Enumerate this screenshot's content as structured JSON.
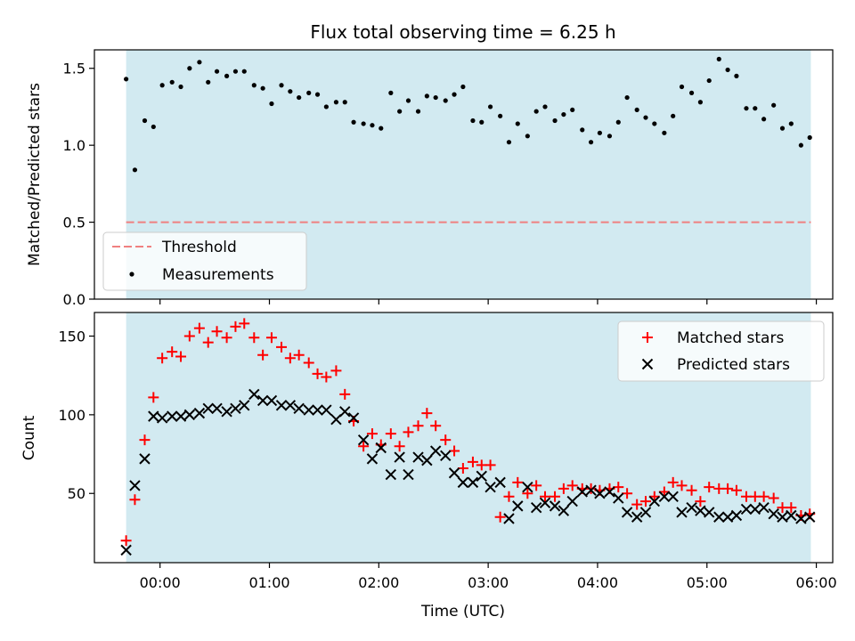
{
  "figure": {
    "title": "Flux total observing time = 6.25 h",
    "xlabel": "Time (UTC)"
  },
  "colors": {
    "shade": "#add8e6",
    "threshold": "#f08080",
    "measurements": "#000000",
    "matched": "#ff0000",
    "predicted": "#000000"
  },
  "chart_data": [
    {
      "type": "scatter",
      "panel": "top",
      "ylabel": "Matched/Predicted stars",
      "xlim": [
        -0.6,
        6.15
      ],
      "ylim": [
        0.0,
        1.62
      ],
      "x_unit": "hours (UTC)",
      "shaded_span": [
        -0.31,
        5.95
      ],
      "x_ticks": [
        0,
        1,
        2,
        3,
        4,
        5,
        6
      ],
      "y_ticks": [
        0.0,
        0.5,
        1.0,
        1.5
      ],
      "y_tick_labels": [
        "0.0",
        "0.5",
        "1.0",
        "1.5"
      ],
      "threshold": 0.5,
      "legend": {
        "position": "lower-left",
        "entries": [
          "Threshold",
          "Measurements"
        ]
      },
      "x": [
        -0.31,
        -0.23,
        -0.14,
        -0.06,
        0.02,
        0.11,
        0.19,
        0.27,
        0.36,
        0.44,
        0.52,
        0.61,
        0.69,
        0.77,
        0.86,
        0.94,
        1.02,
        1.11,
        1.19,
        1.27,
        1.36,
        1.44,
        1.52,
        1.61,
        1.69,
        1.77,
        1.86,
        1.94,
        2.02,
        2.11,
        2.19,
        2.27,
        2.36,
        2.44,
        2.52,
        2.61,
        2.69,
        2.77,
        2.86,
        2.94,
        3.02,
        3.11,
        3.19,
        3.27,
        3.36,
        3.44,
        3.52,
        3.61,
        3.69,
        3.77,
        3.86,
        3.94,
        4.02,
        4.11,
        4.19,
        4.27,
        4.36,
        4.44,
        4.52,
        4.61,
        4.69,
        4.77,
        4.86,
        4.94,
        5.02,
        5.11,
        5.19,
        5.27,
        5.36,
        5.44,
        5.52,
        5.61,
        5.69,
        5.77,
        5.86,
        5.94
      ],
      "y": [
        1.43,
        0.84,
        1.16,
        1.12,
        1.39,
        1.41,
        1.38,
        1.5,
        1.54,
        1.41,
        1.48,
        1.45,
        1.48,
        1.48,
        1.39,
        1.37,
        1.27,
        1.39,
        1.35,
        1.31,
        1.34,
        1.33,
        1.25,
        1.28,
        1.28,
        1.15,
        1.14,
        1.13,
        1.11,
        1.34,
        1.22,
        1.29,
        1.22,
        1.32,
        1.31,
        1.29,
        1.33,
        1.38,
        1.16,
        1.15,
        1.25,
        1.19,
        1.02,
        1.14,
        1.06,
        1.22,
        1.25,
        1.16,
        1.2,
        1.23,
        1.1,
        1.02,
        1.08,
        1.06,
        1.15,
        1.31,
        1.23,
        1.18,
        1.14,
        1.08,
        1.19,
        1.38,
        1.34,
        1.28,
        1.42,
        1.56,
        1.49,
        1.45,
        1.24,
        1.24,
        1.17,
        1.26,
        1.11,
        1.14,
        1.0,
        1.05
      ]
    },
    {
      "type": "scatter",
      "panel": "bottom",
      "ylabel": "Count",
      "xlim": [
        -0.6,
        6.15
      ],
      "ylim": [
        6,
        165
      ],
      "shaded_span": [
        -0.31,
        5.95
      ],
      "x_ticks": [
        0,
        1,
        2,
        3,
        4,
        5,
        6
      ],
      "x_tick_labels": [
        "00:00",
        "01:00",
        "02:00",
        "03:00",
        "04:00",
        "05:00",
        "06:00"
      ],
      "y_ticks": [
        50,
        100,
        150
      ],
      "y_tick_labels": [
        "50",
        "100",
        "150"
      ],
      "legend": {
        "position": "upper-right",
        "entries": [
          "Matched stars",
          "Predicted stars"
        ]
      },
      "series": [
        {
          "name": "Matched stars",
          "marker": "+",
          "x": [
            -0.31,
            -0.23,
            -0.14,
            -0.06,
            0.02,
            0.11,
            0.19,
            0.27,
            0.36,
            0.44,
            0.52,
            0.61,
            0.69,
            0.77,
            0.86,
            0.94,
            1.02,
            1.11,
            1.19,
            1.27,
            1.36,
            1.44,
            1.52,
            1.61,
            1.69,
            1.77,
            1.86,
            1.94,
            2.02,
            2.11,
            2.19,
            2.27,
            2.36,
            2.44,
            2.52,
            2.61,
            2.69,
            2.77,
            2.86,
            2.94,
            3.02,
            3.11,
            3.19,
            3.27,
            3.36,
            3.44,
            3.52,
            3.61,
            3.69,
            3.77,
            3.86,
            3.94,
            4.02,
            4.11,
            4.19,
            4.27,
            4.36,
            4.44,
            4.52,
            4.61,
            4.69,
            4.77,
            4.86,
            4.94,
            5.02,
            5.11,
            5.19,
            5.27,
            5.36,
            5.44,
            5.52,
            5.61,
            5.69,
            5.77,
            5.86,
            5.94
          ],
          "y": [
            20,
            46,
            84,
            111,
            136,
            140,
            137,
            150,
            155,
            146,
            153,
            149,
            156,
            158,
            149,
            138,
            149,
            143,
            136,
            138,
            133,
            126,
            124,
            128,
            113,
            96,
            80,
            88,
            81,
            88,
            80,
            89,
            93,
            101,
            93,
            84,
            77,
            66,
            70,
            68,
            68,
            35,
            48,
            57,
            50,
            55,
            48,
            48,
            53,
            55,
            53,
            53,
            52,
            53,
            54,
            50,
            43,
            45,
            48,
            51,
            57,
            55,
            52,
            45,
            54,
            53,
            53,
            52,
            48,
            48,
            48,
            47,
            41,
            41,
            36,
            37
          ]
        },
        {
          "name": "Predicted stars",
          "marker": "x",
          "x": [
            -0.31,
            -0.23,
            -0.14,
            -0.06,
            0.02,
            0.11,
            0.19,
            0.27,
            0.36,
            0.44,
            0.52,
            0.61,
            0.69,
            0.77,
            0.86,
            0.94,
            1.02,
            1.11,
            1.19,
            1.27,
            1.36,
            1.44,
            1.52,
            1.61,
            1.69,
            1.77,
            1.86,
            1.94,
            2.02,
            2.11,
            2.19,
            2.27,
            2.36,
            2.44,
            2.52,
            2.61,
            2.69,
            2.77,
            2.86,
            2.94,
            3.02,
            3.11,
            3.19,
            3.27,
            3.36,
            3.44,
            3.52,
            3.61,
            3.69,
            3.77,
            3.86,
            3.94,
            4.02,
            4.11,
            4.19,
            4.27,
            4.36,
            4.44,
            4.52,
            4.61,
            4.69,
            4.77,
            4.86,
            4.94,
            5.02,
            5.11,
            5.19,
            5.27,
            5.36,
            5.44,
            5.52,
            5.61,
            5.69,
            5.77,
            5.86,
            5.94
          ],
          "y": [
            14,
            55,
            72,
            99,
            98,
            99,
            99,
            100,
            101,
            104,
            104,
            102,
            104,
            106,
            113,
            109,
            109,
            106,
            106,
            104,
            103,
            103,
            103,
            97,
            102,
            98,
            84,
            72,
            79,
            62,
            73,
            62,
            73,
            71,
            77,
            74,
            63,
            57,
            57,
            61,
            54,
            57,
            34,
            42,
            54,
            41,
            44,
            42,
            39,
            45,
            51,
            52,
            50,
            51,
            47,
            38,
            35,
            38,
            45,
            48,
            48,
            38,
            41,
            39,
            38,
            35,
            35,
            36,
            40,
            40,
            41,
            37,
            35,
            36,
            34,
            35
          ]
        }
      ]
    }
  ]
}
